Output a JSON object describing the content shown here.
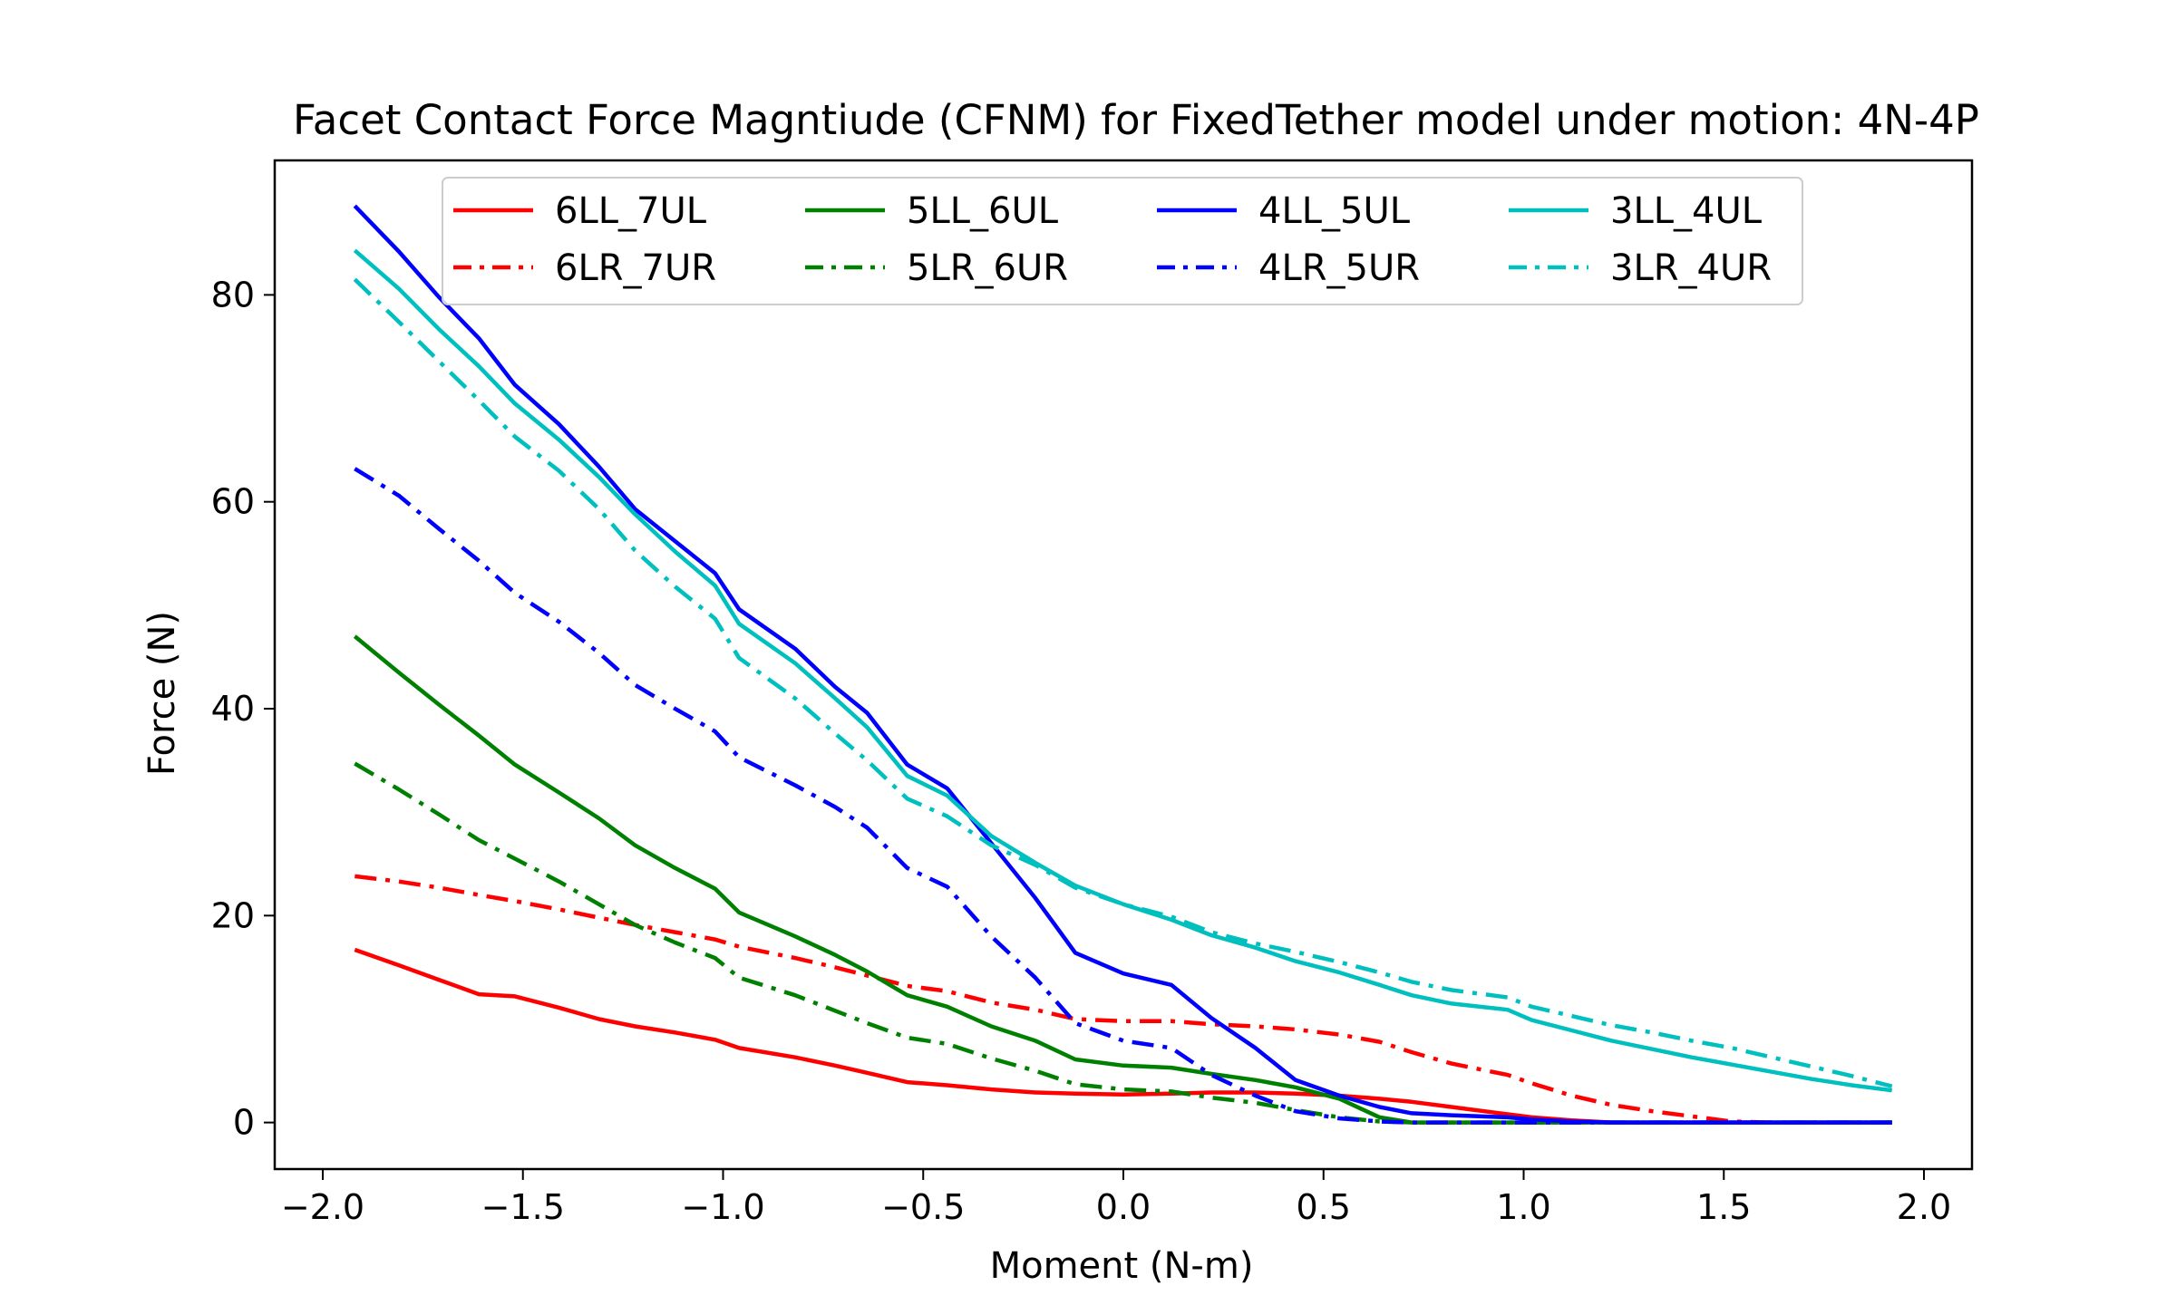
{
  "chart_data": {
    "type": "line",
    "title": "Facet Contact Force Magntiude (CFNM) for FixedTether model under motion: 4N-4P",
    "xlabel": "Moment (N-m)",
    "ylabel": "Force (N)",
    "xlim": [
      -2.12,
      2.12
    ],
    "ylim": [
      -4.5,
      93
    ],
    "xticks": [
      -2.0,
      -1.5,
      -1.0,
      -0.5,
      0.0,
      0.5,
      1.0,
      1.5,
      2.0
    ],
    "xtick_labels": [
      "−2.0",
      "−1.5",
      "−1.0",
      "−0.5",
      "0.0",
      "0.5",
      "1.0",
      "1.5",
      "2.0"
    ],
    "yticks": [
      0,
      20,
      40,
      60,
      80
    ],
    "ytick_labels": [
      "0",
      "20",
      "40",
      "60",
      "80"
    ],
    "grid": false,
    "legend_position": "top-center",
    "legend_columns": 4,
    "x": [
      -1.92,
      -1.81,
      -1.71,
      -1.61,
      -1.52,
      -1.41,
      -1.31,
      -1.22,
      -1.12,
      -1.02,
      -0.96,
      -0.82,
      -0.72,
      -0.64,
      -0.54,
      -0.44,
      -0.33,
      -0.22,
      -0.12,
      0.0,
      0.12,
      0.22,
      0.33,
      0.43,
      0.54,
      0.64,
      0.72,
      0.82,
      0.96,
      1.02,
      1.12,
      1.22,
      1.32,
      1.42,
      1.52,
      1.62,
      1.72,
      1.82,
      1.92
    ],
    "series": [
      {
        "name": "6LL_7UL",
        "color": "#ff0000",
        "dash": "solid",
        "values": [
          16.7,
          15.2,
          13.8,
          12.4,
          12.2,
          11.1,
          10.0,
          9.3,
          8.7,
          8.0,
          7.2,
          6.3,
          5.5,
          4.8,
          3.9,
          3.6,
          3.2,
          2.9,
          2.8,
          2.7,
          2.8,
          2.9,
          2.9,
          2.8,
          2.6,
          2.3,
          2.0,
          1.5,
          0.8,
          0.5,
          0.2,
          0.0,
          0.0,
          0.0,
          0.0,
          0.0,
          0.0,
          0.0,
          0.0
        ]
      },
      {
        "name": "6LR_7UR",
        "color": "#ff0000",
        "dash": "dashdot",
        "values": [
          23.8,
          23.3,
          22.7,
          22.0,
          21.4,
          20.6,
          19.8,
          19.1,
          18.4,
          17.7,
          17.0,
          15.9,
          15.0,
          14.2,
          13.2,
          12.7,
          11.6,
          10.9,
          10.0,
          9.8,
          9.8,
          9.5,
          9.3,
          9.0,
          8.5,
          7.8,
          6.8,
          5.7,
          4.6,
          3.8,
          2.6,
          1.7,
          1.1,
          0.6,
          0.1,
          0.0,
          0.0,
          0.0,
          0.0
        ]
      },
      {
        "name": "5LL_6UL",
        "color": "#008000",
        "dash": "solid",
        "values": [
          47.0,
          43.5,
          40.4,
          37.4,
          34.6,
          31.9,
          29.4,
          26.8,
          24.6,
          22.6,
          20.3,
          18.0,
          16.2,
          14.6,
          12.3,
          11.2,
          9.3,
          7.9,
          6.1,
          5.5,
          5.3,
          4.7,
          4.1,
          3.4,
          2.3,
          0.5,
          0.0,
          0.0,
          0.0,
          0.0,
          0.0,
          0.0,
          0.0,
          0.0,
          0.0,
          0.0,
          0.0,
          0.0,
          0.0
        ]
      },
      {
        "name": "5LR_6UR",
        "color": "#008000",
        "dash": "dashdot",
        "values": [
          34.7,
          32.2,
          29.8,
          27.3,
          25.5,
          23.3,
          21.1,
          19.1,
          17.4,
          15.9,
          14.0,
          12.3,
          10.8,
          9.6,
          8.2,
          7.6,
          6.2,
          5.0,
          3.7,
          3.2,
          3.0,
          2.4,
          1.9,
          1.2,
          0.5,
          0.1,
          0.0,
          0.0,
          0.0,
          0.0,
          0.0,
          0.0,
          0.0,
          0.0,
          0.0,
          0.0,
          0.0,
          0.0,
          0.0
        ]
      },
      {
        "name": "4LL_5UL",
        "color": "#0000ff",
        "dash": "solid",
        "values": [
          88.6,
          84.2,
          79.8,
          75.8,
          71.3,
          67.5,
          63.4,
          59.3,
          56.2,
          53.1,
          49.6,
          45.8,
          42.1,
          39.6,
          34.6,
          32.3,
          27.0,
          21.7,
          16.4,
          14.4,
          13.3,
          10.1,
          7.2,
          4.1,
          2.6,
          1.5,
          0.9,
          0.7,
          0.5,
          0.3,
          0.1,
          0.0,
          0.0,
          0.0,
          0.0,
          0.0,
          0.0,
          0.0,
          0.0
        ]
      },
      {
        "name": "4LR_5UR",
        "color": "#0000ff",
        "dash": "dashdot",
        "values": [
          63.2,
          60.6,
          57.4,
          54.3,
          51.2,
          48.4,
          45.4,
          42.3,
          40.0,
          37.8,
          35.3,
          32.6,
          30.5,
          28.5,
          24.6,
          22.8,
          18.0,
          14.0,
          9.6,
          7.9,
          7.2,
          4.6,
          2.6,
          1.1,
          0.4,
          0.1,
          0.0,
          0.0,
          0.0,
          0.0,
          0.0,
          0.0,
          0.0,
          0.0,
          0.0,
          0.0,
          0.0,
          0.0,
          0.0
        ]
      },
      {
        "name": "3LL_4UL",
        "color": "#00bfbf",
        "dash": "solid",
        "values": [
          84.3,
          80.6,
          76.7,
          73.1,
          69.5,
          66.0,
          62.4,
          58.8,
          55.2,
          51.9,
          48.2,
          44.4,
          41.0,
          38.2,
          33.5,
          31.6,
          27.7,
          25.1,
          22.9,
          21.1,
          19.6,
          18.1,
          16.9,
          15.6,
          14.5,
          13.3,
          12.3,
          11.5,
          10.9,
          9.9,
          8.9,
          7.9,
          7.1,
          6.3,
          5.6,
          4.9,
          4.2,
          3.6,
          3.1
        ]
      },
      {
        "name": "3LR_4UR",
        "color": "#00bfbf",
        "dash": "dashdot",
        "values": [
          81.5,
          77.4,
          73.6,
          69.8,
          66.3,
          63.0,
          59.3,
          55.3,
          51.8,
          48.7,
          44.9,
          41.0,
          37.6,
          35.0,
          31.3,
          29.6,
          26.8,
          24.9,
          22.7,
          21.1,
          19.9,
          18.4,
          17.3,
          16.5,
          15.5,
          14.5,
          13.6,
          12.8,
          12.1,
          11.2,
          10.3,
          9.4,
          8.7,
          7.9,
          7.2,
          6.3,
          5.4,
          4.5,
          3.5
        ]
      }
    ]
  }
}
